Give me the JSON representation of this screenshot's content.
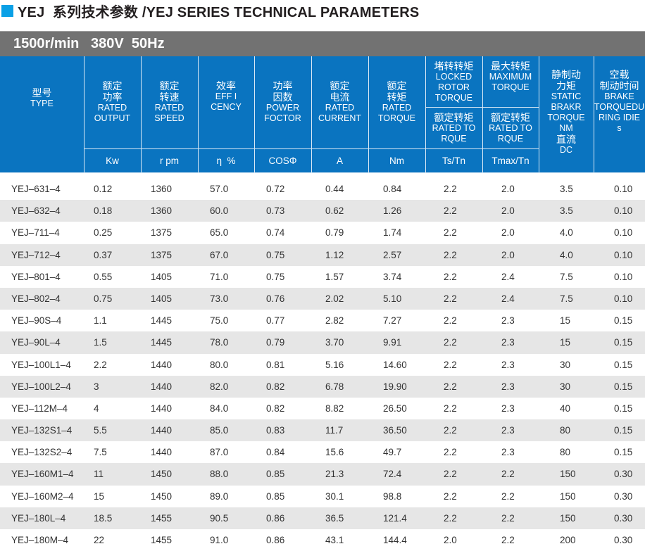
{
  "title": "YEJ  系列技术参数 /YEJ SERIES TECHNICAL PARAMETERS",
  "band": "1500r/min   380V  50Hz",
  "colors": {
    "header_blue": "#0a74c0",
    "band_gray": "#727272",
    "accent_square": "#0aa0e6",
    "row_alt": "#e6e6e6"
  },
  "headers": {
    "type": {
      "cn": "型号",
      "en": "TYPE"
    },
    "output": {
      "cn": "额定\n功率",
      "en": "RATED\nOUTPUT",
      "unit": "Kw"
    },
    "speed": {
      "cn": "额定\n转速",
      "en": "RATED\nSPEED",
      "unit": "r pm"
    },
    "eff": {
      "cn": "效率",
      "en": "EFF I\nCENCY",
      "unit": "η  %"
    },
    "pf": {
      "cn": "功率\n因数",
      "en": "POWER\nFOCTOR",
      "unit": "COSΦ"
    },
    "current": {
      "cn": "额定\n电流",
      "en": "RATED\nCURRENT",
      "unit": "A"
    },
    "torque": {
      "cn": "额定\n转矩",
      "en": "RATED\nTORQUE",
      "unit": "Nm"
    },
    "locked": {
      "cn": "堵转转矩",
      "en": "LOCKED\nROTOR\nTORQUE",
      "sub_cn": "额定转矩",
      "sub_en": "RATED TO\nRQUE",
      "unit": "Ts/Tn"
    },
    "maximum": {
      "cn": "最大转矩",
      "en": "MAXIMUM\nTORQUE",
      "sub_cn": "额定转矩",
      "sub_en": "RATED TO\nRQUE",
      "unit": "Tmax/Tn"
    },
    "brake": {
      "cn": "静制动\n力矩",
      "en": "STATIC\nBRAKR\nTORQUE\nNM",
      "cn2": "直流",
      "en2": "DC"
    },
    "braketime": {
      "cn": "空载\n制动时间",
      "en": "BRAKE\nTORQUEDU\nRING IDIE\ns"
    }
  },
  "rows": [
    [
      "YEJ–631–4",
      "0.12",
      "1360",
      "57.0",
      "0.72",
      "0.44",
      "0.84",
      "2.2",
      "2.0",
      "3.5",
      "0.10"
    ],
    [
      "YEJ–632–4",
      "0.18",
      "1360",
      "60.0",
      "0.73",
      "0.62",
      "1.26",
      "2.2",
      "2.0",
      "3.5",
      "0.10"
    ],
    [
      "YEJ–711–4",
      "0.25",
      "1375",
      "65.0",
      "0.74",
      "0.79",
      "1.74",
      "2.2",
      "2.0",
      "4.0",
      "0.10"
    ],
    [
      "YEJ–712–4",
      "0.37",
      "1375",
      "67.0",
      "0.75",
      "1.12",
      "2.57",
      "2.2",
      "2.0",
      "4.0",
      "0.10"
    ],
    [
      "YEJ–801–4",
      "0.55",
      "1405",
      "71.0",
      "0.75",
      "1.57",
      "3.74",
      "2.2",
      "2.4",
      "7.5",
      "0.10"
    ],
    [
      "YEJ–802–4",
      "0.75",
      "1405",
      "73.0",
      "0.76",
      "2.02",
      "5.10",
      "2.2",
      "2.4",
      "7.5",
      "0.10"
    ],
    [
      "YEJ–90S–4",
      "1.1",
      "1445",
      "75.0",
      "0.77",
      "2.82",
      "7.27",
      "2.2",
      "2.3",
      "15",
      "0.15"
    ],
    [
      "YEJ–90L–4",
      "1.5",
      "1445",
      "78.0",
      "0.79",
      "3.70",
      "9.91",
      "2.2",
      "2.3",
      "15",
      "0.15"
    ],
    [
      "YEJ–100L1–4",
      "2.2",
      "1440",
      "80.0",
      "0.81",
      "5.16",
      "14.60",
      "2.2",
      "2.3",
      "30",
      "0.15"
    ],
    [
      "YEJ–100L2–4",
      "3",
      "1440",
      "82.0",
      "0.82",
      "6.78",
      "19.90",
      "2.2",
      "2.3",
      "30",
      "0.15"
    ],
    [
      "YEJ–112M–4",
      "4",
      "1440",
      "84.0",
      "0.82",
      "8.82",
      "26.50",
      "2.2",
      "2.3",
      "40",
      "0.15"
    ],
    [
      "YEJ–132S1–4",
      "5.5",
      "1440",
      "85.0",
      "0.83",
      "11.7",
      "36.50",
      "2.2",
      "2.3",
      "80",
      "0.15"
    ],
    [
      "YEJ–132S2–4",
      "7.5",
      "1440",
      "87.0",
      "0.84",
      "15.6",
      "49.7",
      "2.2",
      "2.3",
      "80",
      "0.15"
    ],
    [
      "YEJ–160M1–4",
      "11",
      "1450",
      "88.0",
      "0.85",
      "21.3",
      "72.4",
      "2.2",
      "2.2",
      "150",
      "0.30"
    ],
    [
      "YEJ–160M2–4",
      "15",
      "1450",
      "89.0",
      "0.85",
      "30.1",
      "98.8",
      "2.2",
      "2.2",
      "150",
      "0.30"
    ],
    [
      "YEJ–180L–4",
      "18.5",
      "1455",
      "90.5",
      "0.86",
      "36.5",
      "121.4",
      "2.2",
      "2.2",
      "150",
      "0.30"
    ],
    [
      "YEJ–180M–4",
      "22",
      "1455",
      "91.0",
      "0.86",
      "43.1",
      "144.4",
      "2.0",
      "2.2",
      "200",
      "0.30"
    ]
  ]
}
